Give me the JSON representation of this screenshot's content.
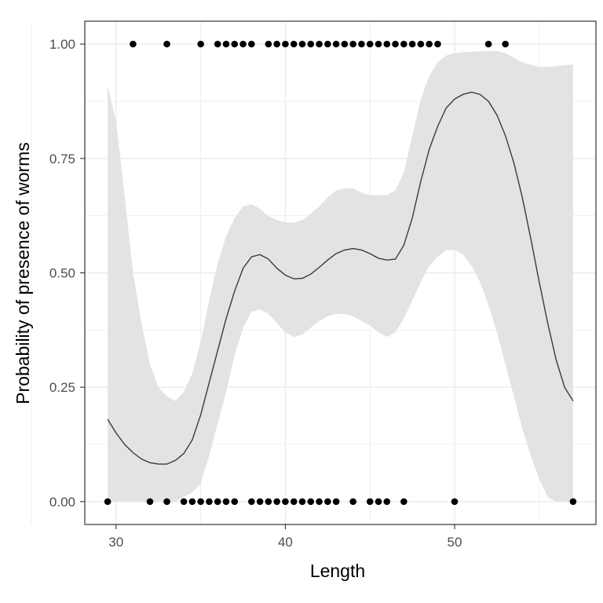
{
  "chart_data": {
    "type": "scatter",
    "title": "",
    "xlabel": "Length",
    "ylabel": "Probability of presence of worms",
    "xlim": [
      28.15,
      58.35
    ],
    "ylim": [
      -0.05,
      1.05
    ],
    "grid": true,
    "x_ticks": [
      30,
      40,
      50
    ],
    "x_tick_labels": [
      "30",
      "40",
      "50"
    ],
    "y_ticks": [
      0,
      0.25,
      0.5,
      0.75,
      1.0
    ],
    "y_tick_labels": [
      "0.00",
      "0.25",
      "0.50",
      "0.75",
      "1.00"
    ],
    "colors": {
      "points": "#000000",
      "smooth_line": "#3a3a3a",
      "confidence_band": "#e3e3e3",
      "grid": "#ebebeb",
      "panel_border": "#333333"
    },
    "series": [
      {
        "type": "points",
        "points": [
          [
            29.5,
            0
          ],
          [
            31,
            1
          ],
          [
            32,
            0
          ],
          [
            33,
            1
          ],
          [
            33,
            0
          ],
          [
            34,
            0
          ],
          [
            34.5,
            0
          ],
          [
            35,
            1
          ],
          [
            35,
            0
          ],
          [
            35.5,
            0
          ],
          [
            36,
            1
          ],
          [
            36,
            0
          ],
          [
            36.5,
            1
          ],
          [
            36.5,
            0
          ],
          [
            37,
            1
          ],
          [
            37,
            0
          ],
          [
            37.5,
            1
          ],
          [
            38,
            1
          ],
          [
            38,
            0
          ],
          [
            38.5,
            0
          ],
          [
            39,
            1
          ],
          [
            39,
            0
          ],
          [
            39.5,
            1
          ],
          [
            39.5,
            0
          ],
          [
            40,
            1
          ],
          [
            40,
            0
          ],
          [
            40.5,
            1
          ],
          [
            40.5,
            0
          ],
          [
            41,
            1
          ],
          [
            41,
            0
          ],
          [
            41.5,
            1
          ],
          [
            41.5,
            0
          ],
          [
            42,
            1
          ],
          [
            42,
            0
          ],
          [
            42.5,
            1
          ],
          [
            42.5,
            0
          ],
          [
            43,
            1
          ],
          [
            43,
            0
          ],
          [
            43.5,
            1
          ],
          [
            44,
            1
          ],
          [
            44,
            0
          ],
          [
            44.5,
            1
          ],
          [
            45,
            1
          ],
          [
            45,
            0
          ],
          [
            45.5,
            1
          ],
          [
            45.5,
            0
          ],
          [
            46,
            1
          ],
          [
            46,
            0
          ],
          [
            46.5,
            1
          ],
          [
            47,
            1
          ],
          [
            47,
            0
          ],
          [
            47.5,
            1
          ],
          [
            48,
            1
          ],
          [
            48.5,
            1
          ],
          [
            49,
            1
          ],
          [
            50,
            0
          ],
          [
            52,
            1
          ],
          [
            53,
            1
          ],
          [
            57,
            0
          ]
        ]
      },
      {
        "type": "smooth",
        "x": [
          29.5,
          30,
          30.5,
          31,
          31.5,
          32,
          32.5,
          33,
          33.5,
          34,
          34.5,
          35,
          35.5,
          36,
          36.5,
          37,
          37.5,
          38,
          38.5,
          39,
          39.5,
          40,
          40.5,
          41,
          41.5,
          42,
          42.5,
          43,
          43.5,
          44,
          44.5,
          45,
          45.5,
          46,
          46.5,
          47,
          47.5,
          48,
          48.5,
          49,
          49.5,
          50,
          50.5,
          51,
          51.5,
          52,
          52.5,
          53,
          53.5,
          54,
          54.5,
          55,
          55.5,
          56,
          56.5,
          57
        ],
        "y": [
          0.18,
          0.15,
          0.125,
          0.107,
          0.093,
          0.085,
          0.082,
          0.082,
          0.09,
          0.105,
          0.135,
          0.19,
          0.26,
          0.33,
          0.4,
          0.46,
          0.51,
          0.535,
          0.54,
          0.53,
          0.51,
          0.495,
          0.487,
          0.488,
          0.497,
          0.512,
          0.528,
          0.542,
          0.55,
          0.553,
          0.55,
          0.542,
          0.532,
          0.528,
          0.53,
          0.56,
          0.62,
          0.7,
          0.77,
          0.82,
          0.86,
          0.88,
          0.89,
          0.895,
          0.89,
          0.875,
          0.845,
          0.8,
          0.74,
          0.665,
          0.575,
          0.48,
          0.39,
          0.31,
          0.25,
          0.22
        ],
        "lower": [
          0.0,
          0.0,
          0.0,
          0.0,
          0.0,
          0.0,
          0.0,
          0.0,
          0.0,
          0.01,
          0.02,
          0.04,
          0.1,
          0.17,
          0.24,
          0.32,
          0.38,
          0.415,
          0.42,
          0.41,
          0.39,
          0.37,
          0.36,
          0.365,
          0.38,
          0.395,
          0.405,
          0.41,
          0.41,
          0.405,
          0.395,
          0.385,
          0.37,
          0.36,
          0.37,
          0.4,
          0.44,
          0.48,
          0.515,
          0.535,
          0.55,
          0.55,
          0.54,
          0.515,
          0.48,
          0.43,
          0.37,
          0.3,
          0.23,
          0.16,
          0.1,
          0.05,
          0.01,
          0.0,
          0.0,
          0.0
        ],
        "upper": [
          0.91,
          0.83,
          0.67,
          0.5,
          0.39,
          0.3,
          0.25,
          0.23,
          0.22,
          0.24,
          0.28,
          0.35,
          0.44,
          0.52,
          0.58,
          0.62,
          0.645,
          0.65,
          0.64,
          0.625,
          0.615,
          0.61,
          0.61,
          0.615,
          0.63,
          0.645,
          0.665,
          0.68,
          0.685,
          0.685,
          0.675,
          0.67,
          0.67,
          0.67,
          0.68,
          0.72,
          0.8,
          0.88,
          0.93,
          0.96,
          0.975,
          0.98,
          0.982,
          0.983,
          0.984,
          0.985,
          0.985,
          0.98,
          0.97,
          0.96,
          0.955,
          0.95,
          0.95,
          0.952,
          0.954,
          0.955
        ]
      }
    ]
  }
}
